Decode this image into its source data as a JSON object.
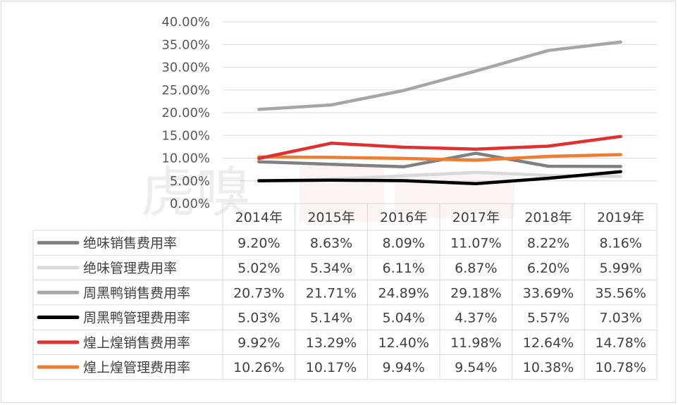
{
  "chart_data": {
    "type": "line",
    "categories": [
      "2014年",
      "2015年",
      "2016年",
      "2017年",
      "2018年",
      "2019年"
    ],
    "series": [
      {
        "name": "绝味销售费用率",
        "color": "#808080",
        "values": [
          9.2,
          8.63,
          8.09,
          11.07,
          8.22,
          8.16
        ],
        "labels": [
          "9.20%",
          "8.63%",
          "8.09%",
          "11.07%",
          "8.22%",
          "8.16%"
        ]
      },
      {
        "name": "绝味管理费用率",
        "color": "#d9d9d9",
        "values": [
          5.02,
          5.34,
          6.11,
          6.87,
          6.2,
          5.99
        ],
        "labels": [
          "5.02%",
          "5.34%",
          "6.11%",
          "6.87%",
          "6.20%",
          "5.99%"
        ]
      },
      {
        "name": "周黑鸭销售费用率",
        "color": "#a6a6a6",
        "values": [
          20.73,
          21.71,
          24.89,
          29.18,
          33.69,
          35.56
        ],
        "labels": [
          "20.73%",
          "21.71%",
          "24.89%",
          "29.18%",
          "33.69%",
          "35.56%"
        ]
      },
      {
        "name": "周黑鸭管理费用率",
        "color": "#000000",
        "values": [
          5.03,
          5.14,
          5.04,
          4.37,
          5.57,
          7.03
        ],
        "labels": [
          "5.03%",
          "5.14%",
          "5.04%",
          "4.37%",
          "5.57%",
          "7.03%"
        ]
      },
      {
        "name": "煌上煌销售费用率",
        "color": "#e03030",
        "values": [
          9.92,
          13.29,
          12.4,
          11.98,
          12.64,
          14.78
        ],
        "labels": [
          "9.92%",
          "13.29%",
          "12.40%",
          "11.98%",
          "12.64%",
          "14.78%"
        ]
      },
      {
        "name": "煌上煌管理费用率",
        "color": "#ed7d31",
        "values": [
          10.26,
          10.17,
          9.94,
          9.54,
          10.38,
          10.78
        ],
        "labels": [
          "10.26%",
          "10.17%",
          "9.94%",
          "9.54%",
          "10.38%",
          "10.78%"
        ]
      }
    ],
    "ylim": [
      0,
      40
    ],
    "yticks": [
      "0.00%",
      "5.00%",
      "10.00%",
      "15.00%",
      "20.00%",
      "25.00%",
      "30.00%",
      "35.00%",
      "40.00%"
    ],
    "grid": true,
    "legend": "data-table"
  },
  "watermark": "虎嗅"
}
